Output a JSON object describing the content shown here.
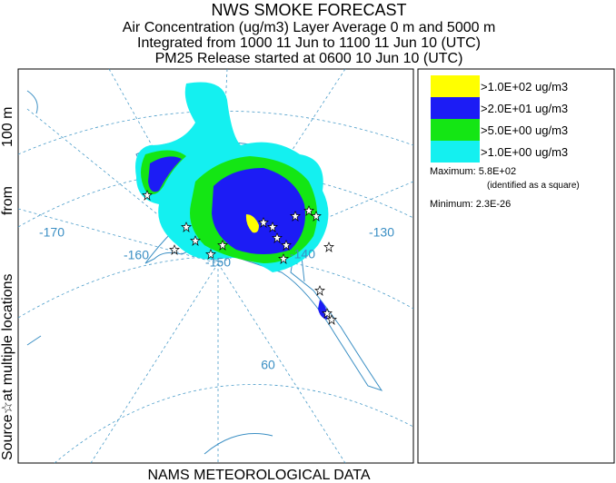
{
  "header": {
    "title": "NWS SMOKE FORECAST",
    "lines": [
      "Air Concentration (ug/m3) Layer Average    0 m and  5000 m",
      "Integrated from 1000 11 Jun to 1100 11 Jun 10 (UTC)",
      "PM25 Release started at 0600 10 Jun 10 (UTC)"
    ]
  },
  "side_label": {
    "source": "Source☆",
    "locations": "at multiple locations",
    "from": "from",
    "height": "100 m"
  },
  "footer": "NAMS METEOROLOGICAL DATA",
  "legend": {
    "entries": [
      {
        "label": ">1.0E+02 ug/m3",
        "color": "#ffff00"
      },
      {
        "label": ">2.0E+01 ug/m3",
        "color": "#1c1cf5"
      },
      {
        "label": ">5.0E+00 ug/m3",
        "color": "#14e614"
      },
      {
        "label": ">1.0E+00 ug/m3",
        "color": "#14f0f0"
      }
    ],
    "maximum_label": "Maximum:",
    "maximum": "5.8E+02",
    "maximum_note": "(identified as a square)",
    "minimum_label": "Minimum:",
    "minimum": "2.3E-26"
  },
  "map": {
    "labels": [
      "-170",
      "-160",
      "-150",
      "-140",
      "-130",
      "60"
    ]
  }
}
